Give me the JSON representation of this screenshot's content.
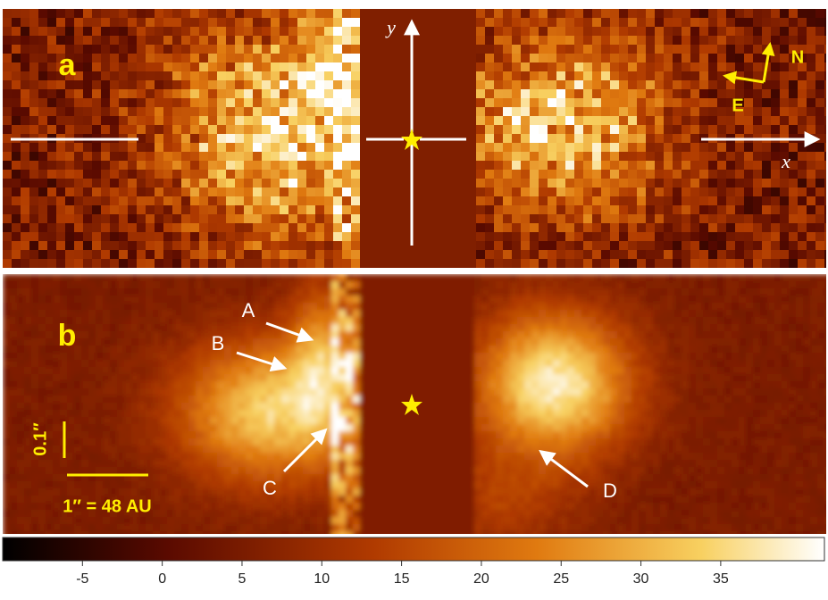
{
  "panels": [
    {
      "label": "a"
    },
    {
      "label": "b"
    }
  ],
  "axes": {
    "x": "x",
    "y": "y"
  },
  "compass": {
    "north": "N",
    "east": "E"
  },
  "features": [
    "A",
    "B",
    "C",
    "D"
  ],
  "scale_bar": {
    "angular": "0.1″",
    "physical": "1″ = 48 AU"
  },
  "colorbar": {
    "lim": [
      -10,
      41.5
    ],
    "ticks": [
      -5,
      0,
      5,
      10,
      15,
      20,
      25,
      30,
      35
    ]
  }
}
